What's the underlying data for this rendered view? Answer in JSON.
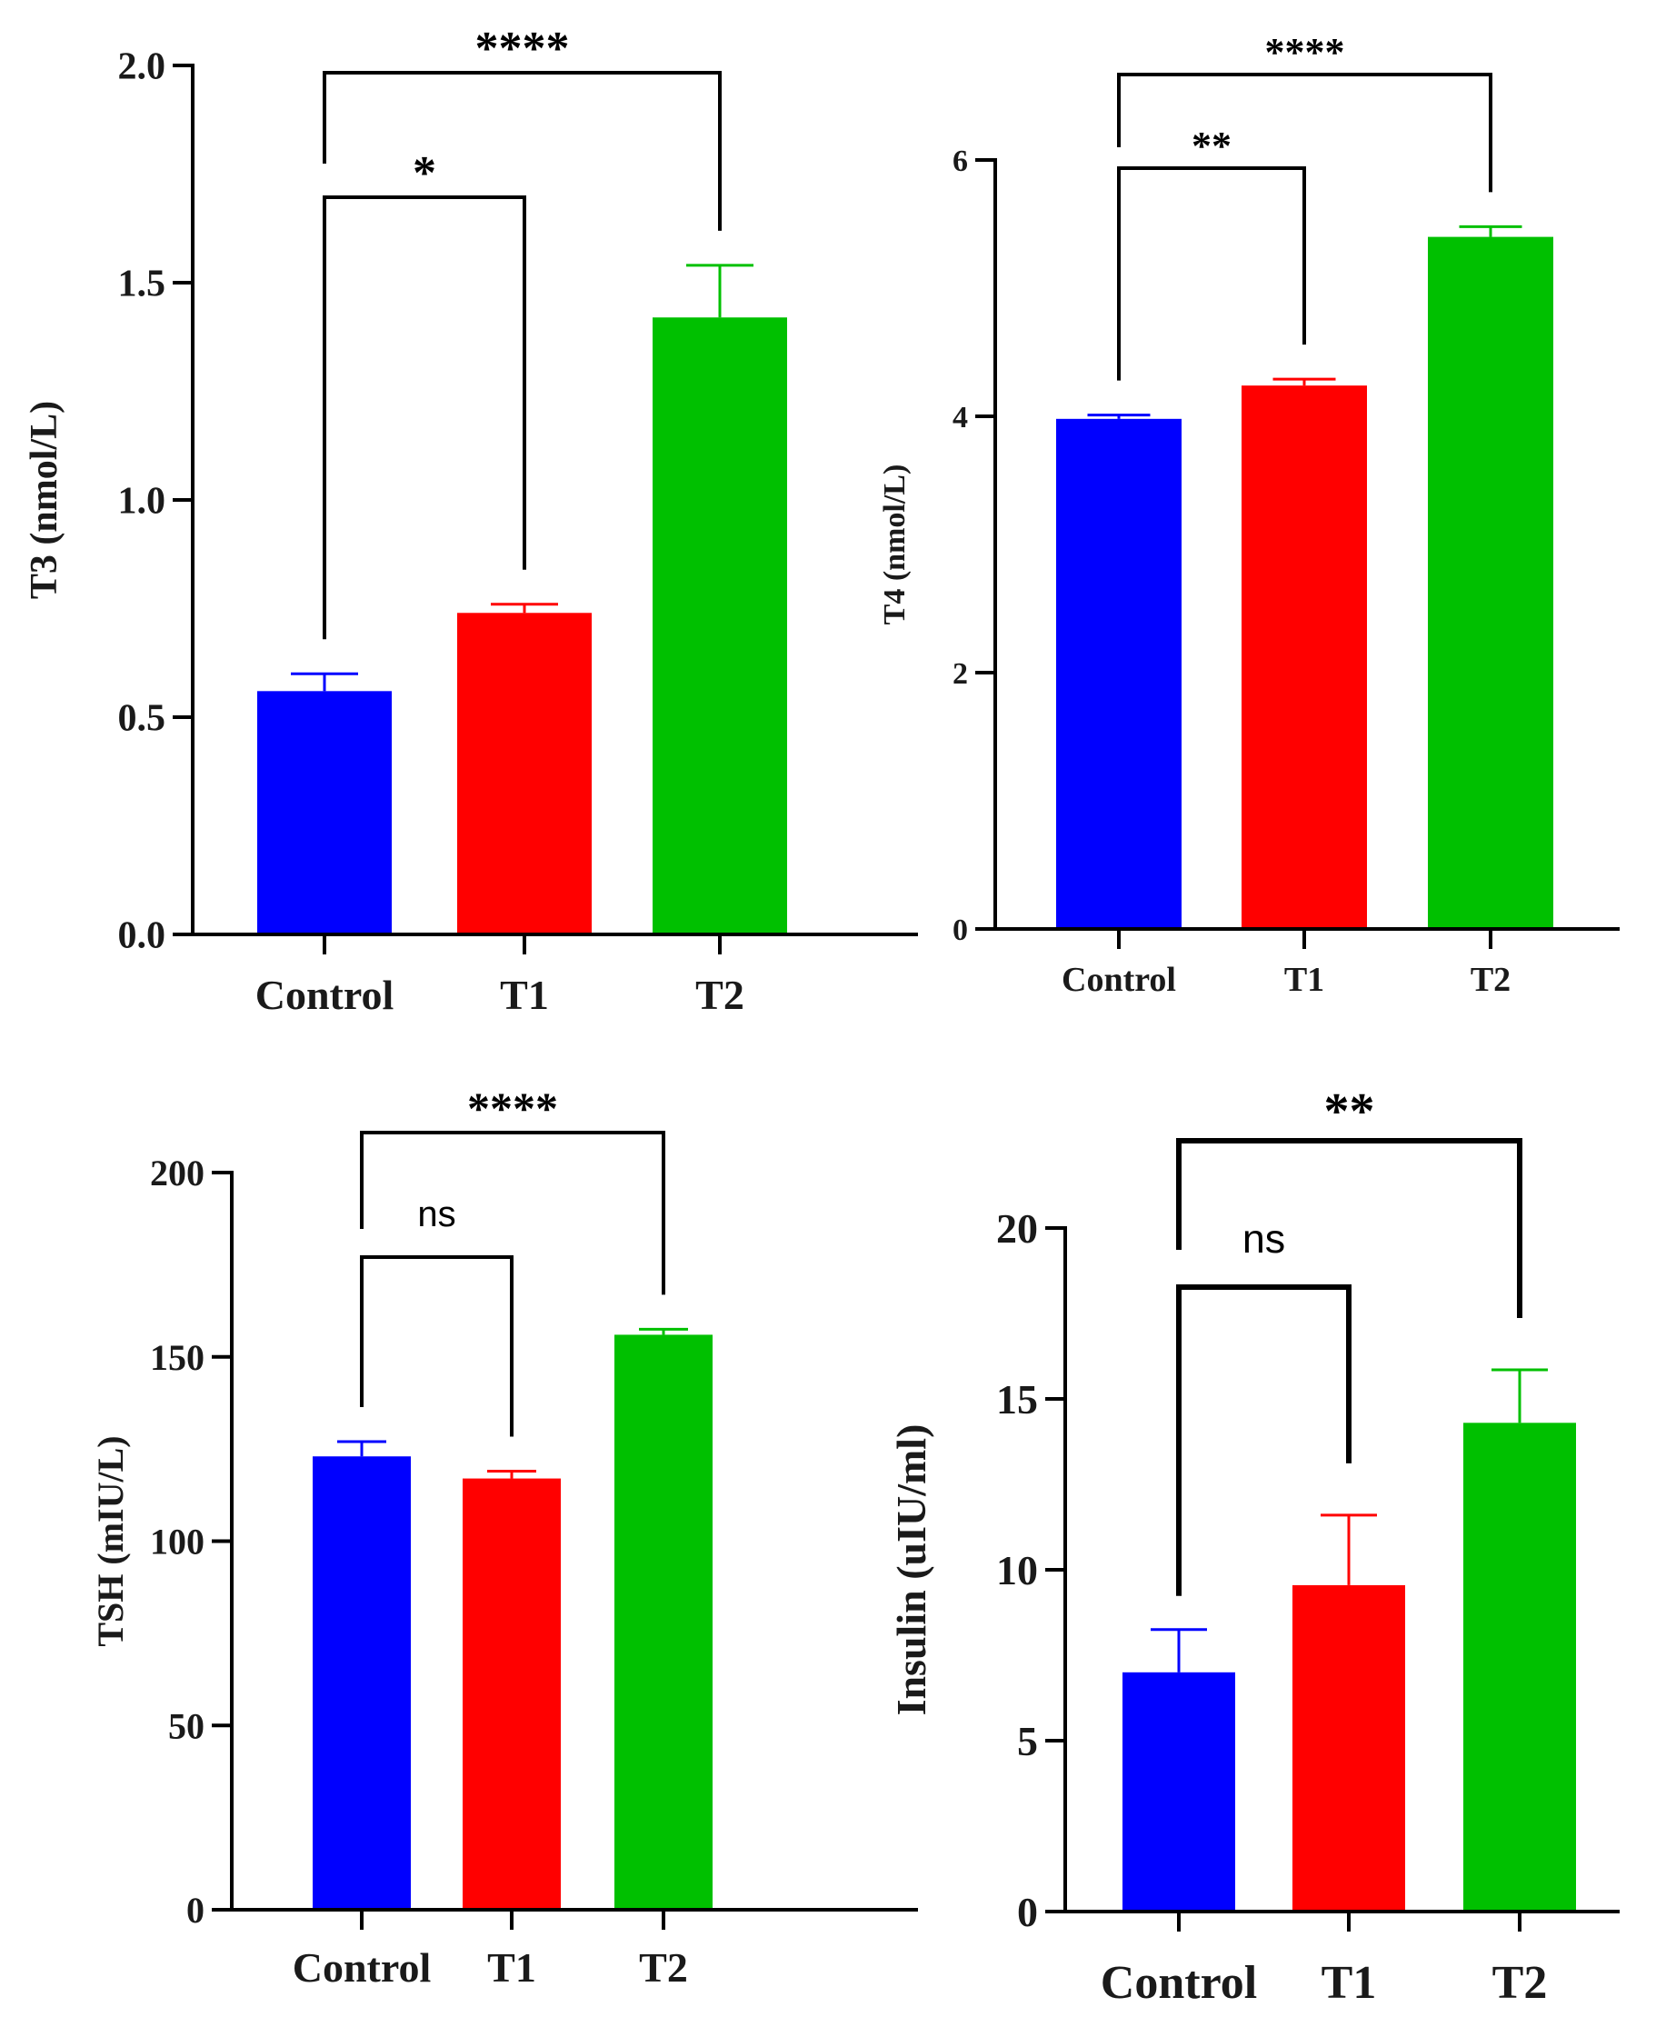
{
  "chart_data": [
    {
      "type": "bar",
      "ylabel": "T3 (nmol/L)",
      "categories": [
        "Control",
        "T1",
        "T2"
      ],
      "values": [
        0.56,
        0.74,
        1.42
      ],
      "errors": [
        0.04,
        0.02,
        0.12
      ],
      "ylim": [
        0,
        2.0
      ],
      "yticks": [
        "0.0",
        "0.5",
        "1.0",
        "1.5",
        "2.0"
      ],
      "ytick_values": [
        0,
        0.5,
        1.0,
        1.5,
        2.0
      ],
      "colors": [
        "#0000ff",
        "#ff0000",
        "#00c000"
      ],
      "comparisons": [
        {
          "from": 0,
          "to": 1,
          "label": "*",
          "level": 1
        },
        {
          "from": 0,
          "to": 2,
          "label": "****",
          "level": 2
        }
      ]
    },
    {
      "type": "bar",
      "ylabel": "T4 (nmol/L)",
      "categories": [
        "Control",
        "T1",
        "T2"
      ],
      "values": [
        3.98,
        4.24,
        5.4
      ],
      "errors": [
        0.03,
        0.05,
        0.08
      ],
      "ylim": [
        0,
        6
      ],
      "yticks": [
        "0",
        "2",
        "4",
        "6"
      ],
      "ytick_values": [
        0,
        2,
        4,
        6
      ],
      "colors": [
        "#0000ff",
        "#ff0000",
        "#00c000"
      ],
      "comparisons": [
        {
          "from": 0,
          "to": 1,
          "label": "**",
          "level": 1
        },
        {
          "from": 0,
          "to": 2,
          "label": "****",
          "level": 2
        }
      ]
    },
    {
      "type": "bar",
      "ylabel": "TSH (mIU/L)",
      "categories": [
        "Control",
        "T1",
        "T2"
      ],
      "values": [
        123,
        117,
        156
      ],
      "errors": [
        4,
        2,
        1.5
      ],
      "ylim": [
        0,
        200
      ],
      "yticks": [
        "0",
        "50",
        "100",
        "150",
        "200"
      ],
      "ytick_values": [
        0,
        50,
        100,
        150,
        200
      ],
      "colors": [
        "#0000ff",
        "#ff0000",
        "#00c000"
      ],
      "comparisons": [
        {
          "from": 0,
          "to": 1,
          "label": "ns",
          "level": 1
        },
        {
          "from": 0,
          "to": 2,
          "label": "****",
          "level": 2
        }
      ]
    },
    {
      "type": "bar",
      "ylabel": "Insulin (uIU/ml)",
      "categories": [
        "Control",
        "T1",
        "T2"
      ],
      "values": [
        7.0,
        9.55,
        14.3
      ],
      "errors": [
        1.25,
        2.05,
        1.55
      ],
      "ylim": [
        0,
        20
      ],
      "yticks": [
        "0",
        "5",
        "10",
        "15",
        "20"
      ],
      "ytick_values": [
        0,
        5,
        10,
        15,
        20
      ],
      "colors": [
        "#0000ff",
        "#ff0000",
        "#00c000"
      ],
      "comparisons": [
        {
          "from": 0,
          "to": 1,
          "label": "ns",
          "level": 1
        },
        {
          "from": 0,
          "to": 2,
          "label": "**",
          "level": 2
        }
      ]
    }
  ]
}
